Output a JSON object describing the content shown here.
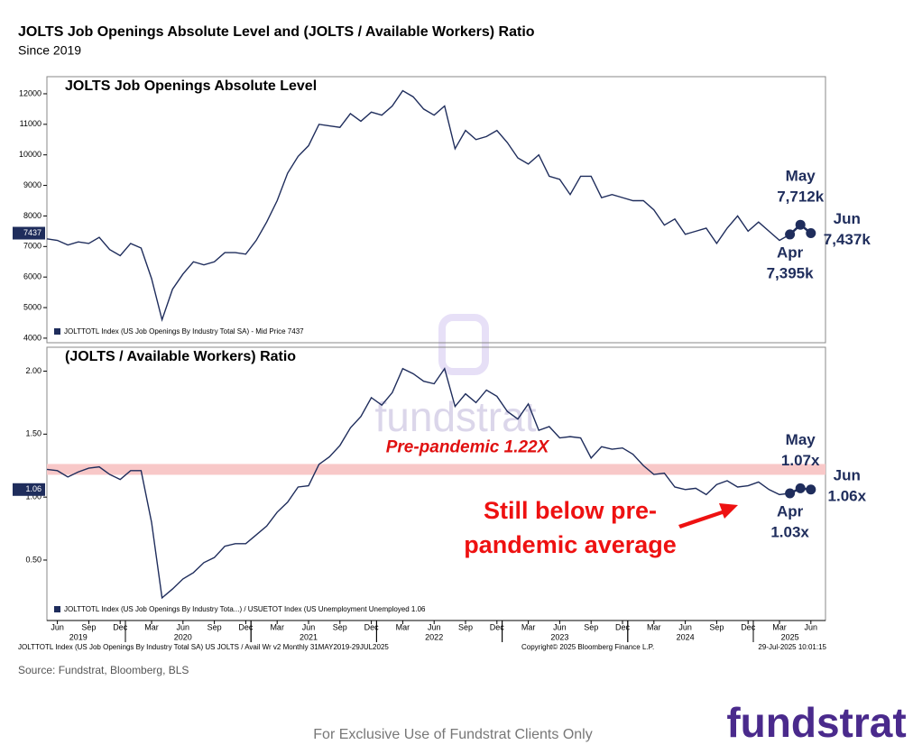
{
  "header": {
    "title": "JOLTS Job Openings Absolute Level and (JOLTS / Available Workers) Ratio",
    "subtitle": "Since 2019"
  },
  "chart_data": [
    {
      "type": "line",
      "title": "JOLTS Job Openings Absolute Level",
      "categories": [
        "2019-05",
        "2019-06",
        "2019-07",
        "2019-08",
        "2019-09",
        "2019-10",
        "2019-11",
        "2019-12",
        "2020-01",
        "2020-02",
        "2020-03",
        "2020-04",
        "2020-05",
        "2020-06",
        "2020-07",
        "2020-08",
        "2020-09",
        "2020-10",
        "2020-11",
        "2020-12",
        "2021-01",
        "2021-02",
        "2021-03",
        "2021-04",
        "2021-05",
        "2021-06",
        "2021-07",
        "2021-08",
        "2021-09",
        "2021-10",
        "2021-11",
        "2021-12",
        "2022-01",
        "2022-02",
        "2022-03",
        "2022-04",
        "2022-05",
        "2022-06",
        "2022-07",
        "2022-08",
        "2022-09",
        "2022-10",
        "2022-11",
        "2022-12",
        "2023-01",
        "2023-02",
        "2023-03",
        "2023-04",
        "2023-05",
        "2023-06",
        "2023-07",
        "2023-08",
        "2023-09",
        "2023-10",
        "2023-11",
        "2023-12",
        "2024-01",
        "2024-02",
        "2024-03",
        "2024-04",
        "2024-05",
        "2024-06",
        "2024-07",
        "2024-08",
        "2024-09",
        "2024-10",
        "2024-11",
        "2024-12",
        "2025-01",
        "2025-02",
        "2025-03",
        "2025-04",
        "2025-05",
        "2025-06"
      ],
      "series": [
        {
          "name": "JOLTTOTL Index (US Job Openings By Industry Total SA) - Mid Price 7437",
          "color": "#1f2d5c",
          "values": [
            7250,
            7200,
            7050,
            7150,
            7100,
            7300,
            6900,
            6700,
            7100,
            6950,
            5950,
            4600,
            5600,
            6100,
            6500,
            6400,
            6500,
            6800,
            6800,
            6750,
            7200,
            7800,
            8500,
            9400,
            9950,
            10300,
            11000,
            10950,
            10900,
            11350,
            11100,
            11400,
            11300,
            11600,
            12100,
            11900,
            11500,
            11300,
            11600,
            10200,
            10800,
            10500,
            10600,
            10800,
            10400,
            9900,
            9700,
            10000,
            9300,
            9200,
            8700,
            9300,
            9300,
            8600,
            8700,
            8600,
            8500,
            8500,
            8200,
            7700,
            7900,
            7400,
            7500,
            7600,
            7100,
            7600,
            8000,
            7500,
            7800,
            7500,
            7200,
            7395,
            7712,
            7437
          ]
        }
      ],
      "ylim": [
        3850,
        12560
      ],
      "yticks": [
        4000,
        5000,
        6000,
        7000,
        8000,
        9000,
        10000,
        11000,
        12000
      ],
      "last_value_label": "7437",
      "callouts": [
        {
          "category": "2025-04",
          "month": "Apr",
          "value_label": "7,395k"
        },
        {
          "category": "2025-05",
          "month": "May",
          "value_label": "7,712k"
        },
        {
          "category": "2025-06",
          "month": "Jun",
          "value_label": "7,437k"
        }
      ]
    },
    {
      "type": "line",
      "title": "(JOLTS / Available Workers) Ratio",
      "categories": [
        "2019-05",
        "2019-06",
        "2019-07",
        "2019-08",
        "2019-09",
        "2019-10",
        "2019-11",
        "2019-12",
        "2020-01",
        "2020-02",
        "2020-03",
        "2020-04",
        "2020-05",
        "2020-06",
        "2020-07",
        "2020-08",
        "2020-09",
        "2020-10",
        "2020-11",
        "2020-12",
        "2021-01",
        "2021-02",
        "2021-03",
        "2021-04",
        "2021-05",
        "2021-06",
        "2021-07",
        "2021-08",
        "2021-09",
        "2021-10",
        "2021-11",
        "2021-12",
        "2022-01",
        "2022-02",
        "2022-03",
        "2022-04",
        "2022-05",
        "2022-06",
        "2022-07",
        "2022-08",
        "2022-09",
        "2022-10",
        "2022-11",
        "2022-12",
        "2023-01",
        "2023-02",
        "2023-03",
        "2023-04",
        "2023-05",
        "2023-06",
        "2023-07",
        "2023-08",
        "2023-09",
        "2023-10",
        "2023-11",
        "2023-12",
        "2024-01",
        "2024-02",
        "2024-03",
        "2024-04",
        "2024-05",
        "2024-06",
        "2024-07",
        "2024-08",
        "2024-09",
        "2024-10",
        "2024-11",
        "2024-12",
        "2025-01",
        "2025-02",
        "2025-03",
        "2025-04",
        "2025-05",
        "2025-06"
      ],
      "series": [
        {
          "name": "JOLTTOTL Index (US Job Openings By Industry Tota...) / USUETOT Index (US Unemployment Unemployed 1.06",
          "color": "#1f2d5c",
          "values": [
            1.22,
            1.21,
            1.16,
            1.2,
            1.23,
            1.24,
            1.18,
            1.14,
            1.21,
            1.21,
            0.8,
            0.2,
            0.27,
            0.35,
            0.4,
            0.48,
            0.52,
            0.61,
            0.63,
            0.63,
            0.7,
            0.77,
            0.88,
            0.96,
            1.08,
            1.09,
            1.26,
            1.32,
            1.41,
            1.55,
            1.64,
            1.79,
            1.73,
            1.83,
            2.02,
            1.98,
            1.92,
            1.9,
            2.02,
            1.72,
            1.82,
            1.75,
            1.85,
            1.8,
            1.68,
            1.62,
            1.74,
            1.53,
            1.56,
            1.47,
            1.48,
            1.47,
            1.31,
            1.4,
            1.38,
            1.39,
            1.34,
            1.25,
            1.18,
            1.19,
            1.08,
            1.06,
            1.07,
            1.02,
            1.1,
            1.13,
            1.08,
            1.09,
            1.12,
            1.06,
            1.02,
            1.03,
            1.07,
            1.06
          ]
        }
      ],
      "ylim": [
        0.02,
        2.19
      ],
      "yticks": [
        {
          "value": 0.5,
          "label": "0.50"
        },
        {
          "value": 1,
          "label": "1.00"
        },
        {
          "value": 1.5,
          "label": "1.50"
        },
        {
          "value": 2,
          "label": "2.00"
        }
      ],
      "last_value_label": "1.06",
      "reference": {
        "value": 1.22,
        "label": "Pre-pandemic 1.22X",
        "color": "#f8c8c8"
      },
      "annotation": {
        "lines": [
          "Still below pre-",
          "pandemic average"
        ],
        "color": "#ee1111"
      },
      "callouts": [
        {
          "category": "2025-04",
          "month": "Apr",
          "value_label": "1.03x"
        },
        {
          "category": "2025-05",
          "month": "May",
          "value_label": "1.07x"
        },
        {
          "category": "2025-06",
          "month": "Jun",
          "value_label": "1.06x"
        }
      ],
      "xticks": [
        {
          "value": "2019-06",
          "label": "Jun"
        },
        {
          "value": "2019-09",
          "label": "Sep"
        },
        {
          "value": "2019-12",
          "label": "Dec"
        },
        {
          "value": "2020-03",
          "label": "Mar"
        },
        {
          "value": "2020-06",
          "label": "Jun"
        },
        {
          "value": "2020-09",
          "label": "Sep"
        },
        {
          "value": "2020-12",
          "label": "Dec"
        },
        {
          "value": "2021-03",
          "label": "Mar"
        },
        {
          "value": "2021-06",
          "label": "Jun"
        },
        {
          "value": "2021-09",
          "label": "Sep"
        },
        {
          "value": "2021-12",
          "label": "Dec"
        },
        {
          "value": "2022-03",
          "label": "Mar"
        },
        {
          "value": "2022-06",
          "label": "Jun"
        },
        {
          "value": "2022-09",
          "label": "Sep"
        },
        {
          "value": "2022-12",
          "label": "Dec"
        },
        {
          "value": "2023-03",
          "label": "Mar"
        },
        {
          "value": "2023-06",
          "label": "Jun"
        },
        {
          "value": "2023-09",
          "label": "Sep"
        },
        {
          "value": "2023-12",
          "label": "Dec"
        },
        {
          "value": "2024-03",
          "label": "Mar"
        },
        {
          "value": "2024-06",
          "label": "Jun"
        },
        {
          "value": "2024-09",
          "label": "Sep"
        },
        {
          "value": "2024-12",
          "label": "Dec"
        },
        {
          "value": "2025-03",
          "label": "Mar"
        },
        {
          "value": "2025-06",
          "label": "Jun"
        }
      ],
      "xyears": [
        {
          "value": "2019-08",
          "label": "2019"
        },
        {
          "value": "2020-06",
          "label": "2020"
        },
        {
          "value": "2021-06",
          "label": "2021"
        },
        {
          "value": "2022-06",
          "label": "2022"
        },
        {
          "value": "2023-06",
          "label": "2023"
        },
        {
          "value": "2024-06",
          "label": "2024"
        },
        {
          "value": "2025-04",
          "label": "2025"
        }
      ]
    }
  ],
  "footer": {
    "bloomberg_left": "JOLTTOTL Index (US Job Openings By Industry Total SA) US JOLTS / Avail Wr v2  Monthly 31MAY2019-29JUL2025",
    "bloomberg_copyright": "Copyright© 2025 Bloomberg Finance L.P.",
    "bloomberg_time": "29-Jul-2025 10:01:15",
    "source": "Source: Fundstrat, Bloomberg, BLS",
    "disclaimer": "For Exclusive Use of Fundstrat Clients Only",
    "logo": "fundstrat",
    "watermark": "fundstrat"
  }
}
